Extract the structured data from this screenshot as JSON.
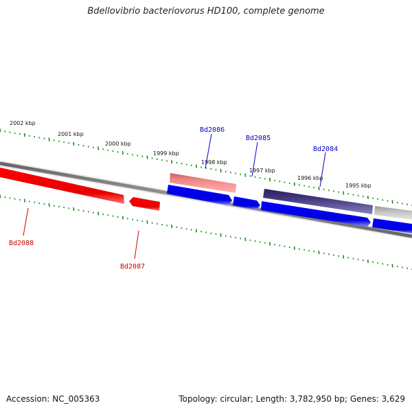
{
  "title": "Bdellovibrio bacteriovorus HD100, complete genome",
  "footer": {
    "accession": "Accession: NC_005363",
    "summary": "Topology: circular; Length: 3,782,950 bp; Genes: 3,629"
  },
  "ruler_labels": [
    "2002 kbp",
    "2001 kbp",
    "2000 kbp",
    "1999 kbp",
    "1998 kbp",
    "1997 kbp",
    "1996 kbp",
    "1995 kbp"
  ],
  "genes": [
    {
      "id": "Bd2088",
      "color": "#cc0000"
    },
    {
      "id": "Bd2087",
      "color": "#cc0000"
    },
    {
      "id": "Bd2086",
      "color": "#0000cc"
    },
    {
      "id": "Bd2085",
      "color": "#0000cc"
    },
    {
      "id": "Bd2084",
      "color": "#0000cc"
    }
  ]
}
